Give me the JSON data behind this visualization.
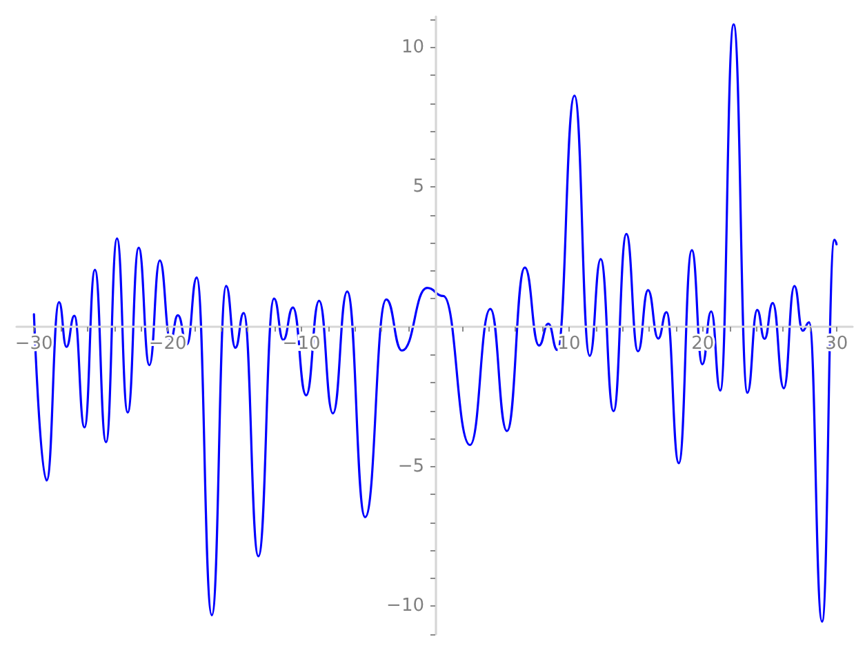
{
  "chart_data": {
    "type": "line",
    "color": "#0000ff",
    "x": [
      -30,
      -29.05,
      -28.12,
      -27.57,
      -26.98,
      -26.22,
      -25.44,
      -24.61,
      -23.79,
      -22.99,
      -22.17,
      -21.37,
      -20.59,
      -19.79,
      -19.24,
      -18.56,
      -17.83,
      -16.7,
      -15.63,
      -14.94,
      -14.32,
      -13.22,
      -12.05,
      -11.36,
      -10.64,
      -9.65,
      -8.68,
      -7.65,
      -6.58,
      -5.24,
      -3.66,
      -2.49,
      -0.6,
      0.6,
      2.6,
      4.12,
      5.36,
      6.7,
      7.76,
      8.45,
      9.13,
      10.41,
      11.55,
      12.37,
      13.33,
      14.29,
      15.16,
      15.91,
      16.67,
      17.29,
      18.21,
      19.18,
      19.97,
      20.63,
      21.31,
      22.31,
      23.34,
      24.07,
      24.62,
      25.23,
      26.06,
      26.85,
      27.47,
      27.95,
      28.92,
      29.84,
      30
    ],
    "values": [
      0.45,
      -5.5,
      0.88,
      -0.72,
      0.39,
      -3.6,
      2.04,
      -4.13,
      3.16,
      -3.07,
      2.83,
      -1.37,
      2.37,
      -0.47,
      0.41,
      -0.63,
      1.76,
      -10.32,
      1.46,
      -0.75,
      0.49,
      -8.21,
      1.01,
      -0.47,
      0.69,
      -2.45,
      0.93,
      -3.1,
      1.26,
      -6.81,
      0.98,
      -0.85,
      1.39,
      1.1,
      -4.23,
      0.64,
      -3.73,
      2.12,
      -0.67,
      0.11,
      -0.83,
      8.27,
      -1.04,
      2.42,
      -3.02,
      3.32,
      -0.88,
      1.31,
      -0.42,
      0.52,
      -4.88,
      2.74,
      -1.34,
      0.55,
      -2.28,
      10.82,
      -2.36,
      0.6,
      -0.43,
      0.85,
      -2.2,
      1.46,
      -0.14,
      0.16,
      -10.55,
      3.11,
      2.95
    ],
    "xlim": [
      -31.3,
      31.2
    ],
    "ylim": [
      -11.0,
      11.1
    ],
    "xticks": [
      {
        "value": -30,
        "label": "−30"
      },
      {
        "value": -28,
        "label": null
      },
      {
        "value": -26,
        "label": null
      },
      {
        "value": -24,
        "label": null
      },
      {
        "value": -22,
        "label": null
      },
      {
        "value": -20,
        "label": "−20"
      },
      {
        "value": -18,
        "label": null
      },
      {
        "value": -16,
        "label": null
      },
      {
        "value": -14,
        "label": null
      },
      {
        "value": -12,
        "label": null
      },
      {
        "value": -10,
        "label": "−10"
      },
      {
        "value": -8,
        "label": null
      },
      {
        "value": -6,
        "label": null
      },
      {
        "value": -4,
        "label": null
      },
      {
        "value": -2,
        "label": null
      },
      {
        "value": 2,
        "label": null
      },
      {
        "value": 4,
        "label": null
      },
      {
        "value": 6,
        "label": null
      },
      {
        "value": 8,
        "label": null
      },
      10,
      {
        "value": 12,
        "label": null
      },
      {
        "value": 14,
        "label": null
      },
      {
        "value": 16,
        "label": null
      },
      {
        "value": 18,
        "label": null
      },
      20,
      {
        "value": 22,
        "label": null
      },
      {
        "value": 24,
        "label": null
      },
      {
        "value": 26,
        "label": null
      },
      {
        "value": 28,
        "label": null
      },
      30
    ],
    "yticks": [
      {
        "value": -11,
        "label": null
      },
      {
        "value": -10,
        "label": "−10"
      },
      {
        "value": -9,
        "label": null
      },
      {
        "value": -8,
        "label": null
      },
      {
        "value": -7,
        "label": null
      },
      {
        "value": -6,
        "label": null
      },
      {
        "value": -5,
        "label": "−5"
      },
      {
        "value": -4,
        "label": null
      },
      {
        "value": -3,
        "label": null
      },
      {
        "value": -2,
        "label": null
      },
      {
        "value": -1,
        "label": null
      },
      {
        "value": 1,
        "label": null
      },
      {
        "value": 2,
        "label": null
      },
      {
        "value": 3,
        "label": null
      },
      {
        "value": 4,
        "label": null
      },
      5,
      {
        "value": 6,
        "label": null
      },
      {
        "value": 7,
        "label": null
      },
      {
        "value": 8,
        "label": null
      },
      {
        "value": 9,
        "label": null
      },
      10,
      {
        "value": 11,
        "label": null
      }
    ]
  }
}
